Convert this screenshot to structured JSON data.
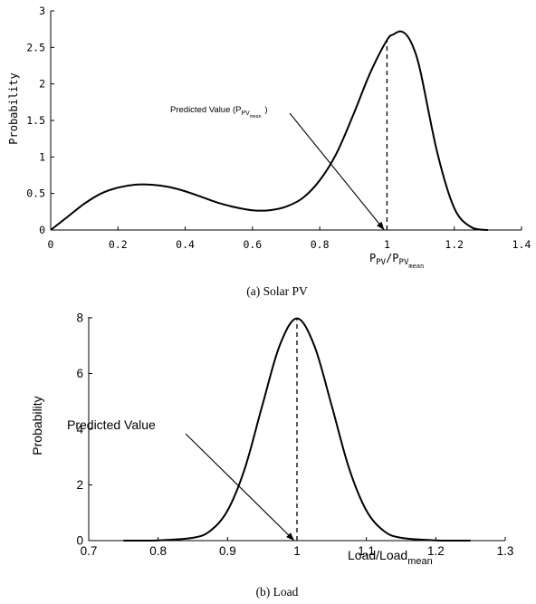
{
  "chart_data": [
    {
      "type": "line",
      "caption": "(a) Solar PV",
      "ylabel": "Probability",
      "xlabel_main": "P",
      "xlabel_sub1": "PV",
      "xlabel_slash": "/P",
      "xlabel_sub2": "PV",
      "xlabel_subsub": "mean",
      "xlim": [
        0,
        1.4
      ],
      "ylim": [
        0,
        3
      ],
      "xticks": [
        "0",
        "0.2",
        "0.4",
        "0.6",
        "0.8",
        "1",
        "1.2",
        "1.4"
      ],
      "yticks": [
        "0",
        "0.5",
        "1",
        "1.5",
        "2",
        "2.5",
        "3"
      ],
      "annotation": {
        "text_main": "Predicted Value (P",
        "text_sub": "PV",
        "text_subsub": "mean",
        "text_close": ")",
        "target": [
          1.0,
          0.0
        ]
      },
      "vline_x": 1.0,
      "series": [
        {
          "x": [
            0,
            0.05,
            0.1,
            0.15,
            0.2,
            0.25,
            0.3,
            0.35,
            0.4,
            0.45,
            0.5,
            0.55,
            0.6,
            0.65,
            0.7,
            0.75,
            0.8,
            0.85,
            0.9,
            0.95,
            1.0,
            1.02,
            1.04,
            1.06,
            1.08,
            1.1,
            1.15,
            1.2,
            1.25,
            1.3
          ],
          "y": [
            0,
            0.18,
            0.36,
            0.5,
            0.58,
            0.62,
            0.62,
            0.59,
            0.53,
            0.45,
            0.37,
            0.31,
            0.27,
            0.27,
            0.32,
            0.44,
            0.68,
            1.05,
            1.58,
            2.15,
            2.6,
            2.68,
            2.72,
            2.66,
            2.48,
            2.16,
            1.05,
            0.3,
            0.04,
            0
          ]
        }
      ]
    },
    {
      "type": "line",
      "caption": "(b) Load",
      "ylabel": "Probability",
      "xlabel_main": "Load/Load",
      "xlabel_sub": "mean",
      "xlim": [
        0.7,
        1.3
      ],
      "ylim": [
        0,
        8
      ],
      "xticks": [
        "0.7",
        "0.8",
        "0.9",
        "1",
        "1.1",
        "1.2",
        "1.3"
      ],
      "yticks": [
        "0",
        "2",
        "4",
        "6",
        "8"
      ],
      "annotation": {
        "text": "Predicted Value",
        "target": [
          1.0,
          0.0
        ]
      },
      "vline_x": 1.0,
      "series": [
        {
          "x": [
            0.75,
            0.8,
            0.85,
            0.875,
            0.9,
            0.925,
            0.95,
            0.975,
            1.0,
            1.025,
            1.05,
            1.075,
            1.1,
            1.125,
            1.15,
            1.2,
            1.25
          ],
          "y": [
            0,
            0.01,
            0.1,
            0.35,
            1.08,
            2.6,
            4.85,
            7.0,
            7.98,
            7.0,
            4.85,
            2.6,
            1.08,
            0.35,
            0.1,
            0.01,
            0
          ]
        }
      ]
    }
  ]
}
